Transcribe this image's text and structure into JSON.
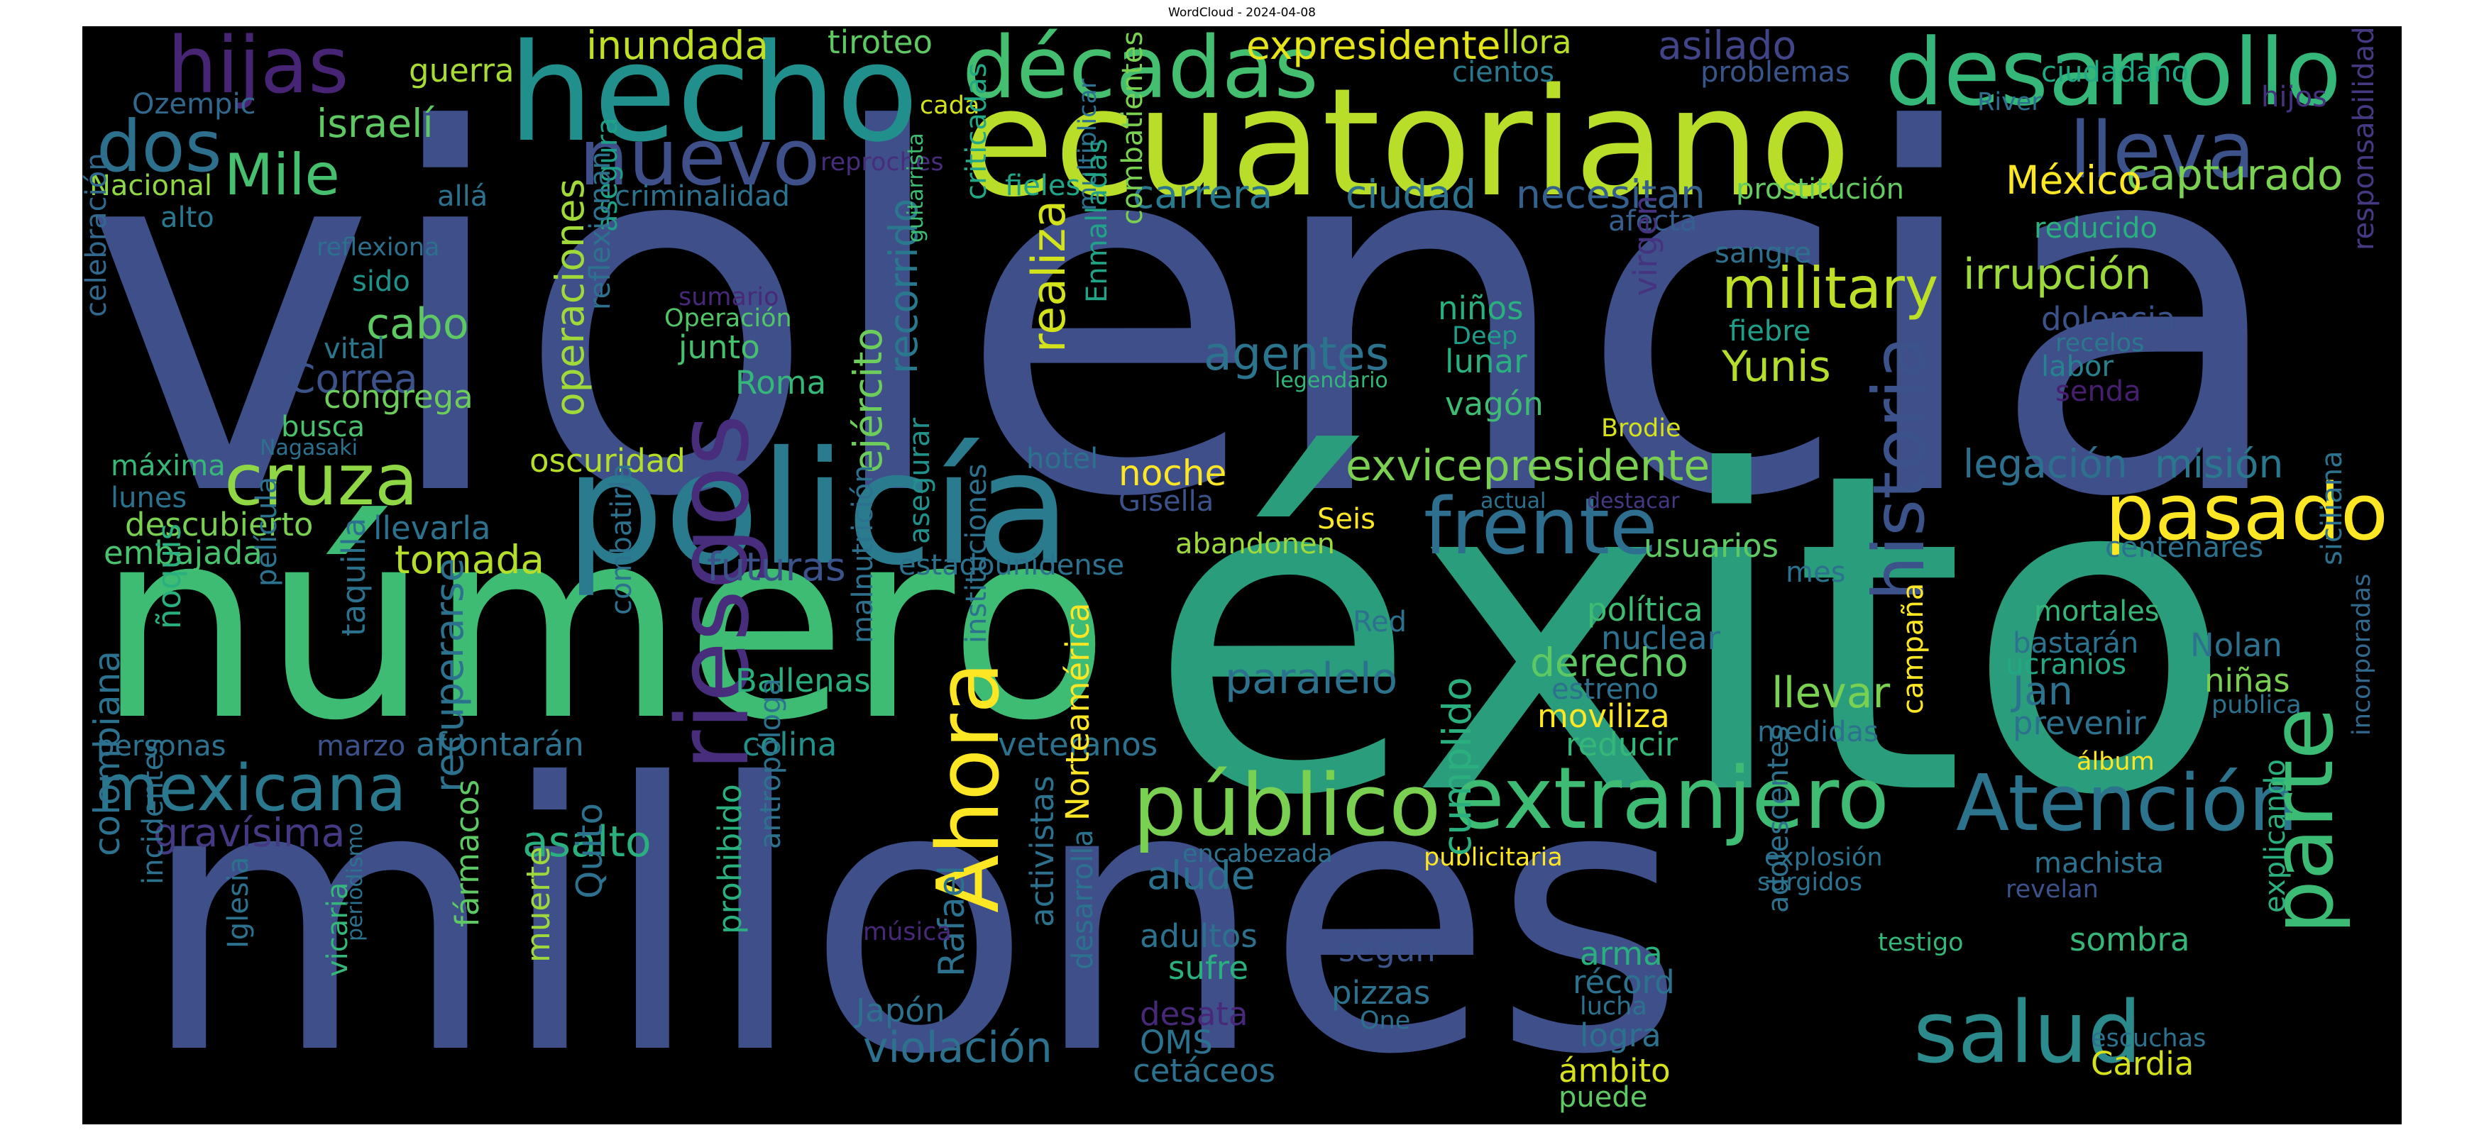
{
  "title": "WordCloud - 2024-04-08",
  "words": [
    {
      "text": "violencia",
      "color": "#3e4f8a"
    },
    {
      "text": "millones",
      "color": "#3e4f8a"
    },
    {
      "text": "éxito",
      "color": "#2a9d7c"
    },
    {
      "text": "número",
      "color": "#3fbc73"
    },
    {
      "text": "ecuatoriano",
      "color": "#b8de29"
    },
    {
      "text": "policía",
      "color": "#2a7b8e"
    },
    {
      "text": "hecho",
      "color": "#21908c"
    },
    {
      "text": "desarrollo",
      "color": "#35b779"
    },
    {
      "text": "décadas",
      "color": "#44bf70"
    },
    {
      "text": "historia",
      "color": "#3b528b"
    },
    {
      "text": "extranjero",
      "color": "#3fbc73"
    },
    {
      "text": "público",
      "color": "#7ad151"
    },
    {
      "text": "Atención",
      "color": "#2c738e"
    },
    {
      "text": "riesgos",
      "color": "#472d7b"
    },
    {
      "text": "salud",
      "color": "#2a8a8c"
    },
    {
      "text": "parte",
      "color": "#3cbb75"
    },
    {
      "text": "pasado",
      "color": "#fde725"
    },
    {
      "text": "frente",
      "color": "#2e6e8e"
    },
    {
      "text": "Ahora",
      "color": "#fde725"
    },
    {
      "text": "lleva",
      "color": "#3b528b"
    },
    {
      "text": "nuevo",
      "color": "#3e4f8a"
    },
    {
      "text": "hijas",
      "color": "#482475"
    },
    {
      "text": "cruza",
      "color": "#8fd744"
    },
    {
      "text": "dos",
      "color": "#2d708e"
    },
    {
      "text": "mexicana",
      "color": "#2a788e"
    },
    {
      "text": "Mile",
      "color": "#46c06f"
    },
    {
      "text": "military",
      "color": "#bddf26"
    },
    {
      "text": "exvicepresidente",
      "color": "#7ad151"
    },
    {
      "text": "operaciones",
      "color": "#a0da39"
    },
    {
      "text": "ejército",
      "color": "#6ccd5a"
    },
    {
      "text": "recorrido",
      "color": "#2a788e"
    },
    {
      "text": "realiza",
      "color": "#d2e21b"
    },
    {
      "text": "agentes",
      "color": "#2c738e"
    },
    {
      "text": "Yunis",
      "color": "#b5de2b"
    },
    {
      "text": "capturado",
      "color": "#7ad151"
    },
    {
      "text": "irrupción",
      "color": "#9bd93c"
    },
    {
      "text": "México",
      "color": "#fde725"
    },
    {
      "text": "necesitan",
      "color": "#34608d"
    },
    {
      "text": "carrera",
      "color": "#2a788e"
    },
    {
      "text": "ciudad",
      "color": "#2c728e"
    },
    {
      "text": "inundada",
      "color": "#c2df23"
    },
    {
      "text": "expresidente",
      "color": "#e5e419"
    },
    {
      "text": "asilado",
      "color": "#414487"
    },
    {
      "text": "guerra",
      "color": "#a8db34"
    },
    {
      "text": "tiroteo",
      "color": "#5ec962"
    },
    {
      "text": "llora",
      "color": "#b8de29"
    },
    {
      "text": "cientos",
      "color": "#2a788e"
    },
    {
      "text": "problemas",
      "color": "#39568c"
    },
    {
      "text": "ciudadano",
      "color": "#22a884"
    },
    {
      "text": "hijos",
      "color": "#46337f"
    },
    {
      "text": "River",
      "color": "#2d708e"
    },
    {
      "text": "Ozempic",
      "color": "#31688e"
    },
    {
      "text": "cada",
      "color": "#d2e21b"
    },
    {
      "text": "israelí",
      "color": "#5ec962"
    },
    {
      "text": "reproches",
      "color": "#472d7b"
    },
    {
      "text": "Nacional",
      "color": "#8fd744"
    },
    {
      "text": "allá",
      "color": "#2c728e"
    },
    {
      "text": "criminalidad",
      "color": "#2c728e"
    },
    {
      "text": "fieles",
      "color": "#20a386"
    },
    {
      "text": "prostitución",
      "color": "#63cb5f"
    },
    {
      "text": "alto",
      "color": "#2a788e"
    },
    {
      "text": "asegura",
      "color": "#1fa088"
    },
    {
      "text": "afecta",
      "color": "#35608d"
    },
    {
      "text": "reducido",
      "color": "#2ab07f"
    },
    {
      "text": "reflexiona",
      "color": "#2d708e"
    },
    {
      "text": "criticadas",
      "color": "#22a884"
    },
    {
      "text": "guitarrista",
      "color": "#3fbc73"
    },
    {
      "text": "multiplicar",
      "color": "#2c728e"
    },
    {
      "text": "Enmalladas",
      "color": "#20a386"
    },
    {
      "text": "combatientes",
      "color": "#7ad151"
    },
    {
      "text": "sangre",
      "color": "#2d708e"
    },
    {
      "text": "sido",
      "color": "#21918c"
    },
    {
      "text": "niños",
      "color": "#2ab07f"
    },
    {
      "text": "virgen",
      "color": "#46337f"
    },
    {
      "text": "dolencia",
      "color": "#3b528b"
    },
    {
      "text": "responsabilidad",
      "color": "#443a83"
    },
    {
      "text": "sumario",
      "color": "#482878"
    },
    {
      "text": "Operación",
      "color": "#52c569"
    },
    {
      "text": "cabo",
      "color": "#5ec962"
    },
    {
      "text": "fiebre",
      "color": "#1f9e89"
    },
    {
      "text": "recelos",
      "color": "#2a788e"
    },
    {
      "text": "reflexionan",
      "color": "#2c728e"
    },
    {
      "text": "junto",
      "color": "#46c06f"
    },
    {
      "text": "Deep",
      "color": "#1f9e89"
    },
    {
      "text": "labor",
      "color": "#26828e"
    },
    {
      "text": "vital",
      "color": "#2a788e"
    },
    {
      "text": "lunar",
      "color": "#2ab07f"
    },
    {
      "text": "legendario",
      "color": "#32b67a"
    },
    {
      "text": "senda",
      "color": "#481f70"
    },
    {
      "text": "Correa",
      "color": "#3b528b"
    },
    {
      "text": "Roma",
      "color": "#35b779"
    },
    {
      "text": "congrega",
      "color": "#6ccd5a"
    },
    {
      "text": "vagón",
      "color": "#3fbc73"
    },
    {
      "text": "celebración",
      "color": "#31688e"
    },
    {
      "text": "busca",
      "color": "#4ac16d"
    },
    {
      "text": "Nagasaki",
      "color": "#2c728e"
    },
    {
      "text": "Brodie",
      "color": "#d5e21a"
    },
    {
      "text": "máxima",
      "color": "#37b878"
    },
    {
      "text": "oscuridad",
      "color": "#b5de2b"
    },
    {
      "text": "hotel",
      "color": "#2c728e"
    },
    {
      "text": "noche",
      "color": "#fde725"
    },
    {
      "text": "legación",
      "color": "#2d708e"
    },
    {
      "text": "misión",
      "color": "#2a788e"
    },
    {
      "text": "lunes",
      "color": "#2c728e"
    },
    {
      "text": "Gisella",
      "color": "#3b528b"
    },
    {
      "text": "actual",
      "color": "#2c728e"
    },
    {
      "text": "destacar",
      "color": "#443983"
    },
    {
      "text": "descubierto",
      "color": "#7ad151"
    },
    {
      "text": "llevarla",
      "color": "#2c728e"
    },
    {
      "text": "Seis",
      "color": "#fde725"
    },
    {
      "text": "embajada",
      "color": "#4ac16d"
    },
    {
      "text": "tomada",
      "color": "#b5de2b"
    },
    {
      "text": "futuras",
      "color": "#3b528b"
    },
    {
      "text": "estadounidense",
      "color": "#2c728e"
    },
    {
      "text": "abandonen",
      "color": "#9dd93b"
    },
    {
      "text": "usuarios",
      "color": "#5ec962"
    },
    {
      "text": "centenares",
      "color": "#2c728e"
    },
    {
      "text": "mes",
      "color": "#2c728e"
    },
    {
      "text": "película",
      "color": "#2c728e"
    },
    {
      "text": "asegurar",
      "color": "#21918c"
    },
    {
      "text": "combatirla",
      "color": "#2c728e"
    },
    {
      "text": "política",
      "color": "#3fbc73"
    },
    {
      "text": "nuclear",
      "color": "#2c728e"
    },
    {
      "text": "Red",
      "color": "#2c728e"
    },
    {
      "text": "mortales",
      "color": "#35b779"
    },
    {
      "text": "siciliana",
      "color": "#2c728e"
    },
    {
      "text": "bastarán",
      "color": "#2c728e"
    },
    {
      "text": "Nolan",
      "color": "#2c728e"
    },
    {
      "text": "ñoquis",
      "color": "#2ab07f"
    },
    {
      "text": "taquilla",
      "color": "#2c728e"
    },
    {
      "text": "derecho",
      "color": "#5ec962"
    },
    {
      "text": "paralelo",
      "color": "#2c728e"
    },
    {
      "text": "ucranios",
      "color": "#22a884"
    },
    {
      "text": "niñas",
      "color": "#7ad151"
    },
    {
      "text": "publica",
      "color": "#2c728e"
    },
    {
      "text": "Ballenas",
      "color": "#2ab07f"
    },
    {
      "text": "malnutrición",
      "color": "#2c728e"
    },
    {
      "text": "instituciones",
      "color": "#2c728e"
    },
    {
      "text": "estreno",
      "color": "#2c728e"
    },
    {
      "text": "llevar",
      "color": "#7ad151"
    },
    {
      "text": "Jan",
      "color": "#2c728e"
    },
    {
      "text": "moviliza",
      "color": "#fde725"
    },
    {
      "text": "prevenir",
      "color": "#2c728e"
    },
    {
      "text": "personas",
      "color": "#2c728e"
    },
    {
      "text": "marzo",
      "color": "#3b528b"
    },
    {
      "text": "afrontarán",
      "color": "#2c728e"
    },
    {
      "text": "colina",
      "color": "#21918c"
    },
    {
      "text": "veteranos",
      "color": "#2c728e"
    },
    {
      "text": "reducir",
      "color": "#35b779"
    },
    {
      "text": "medidas",
      "color": "#2c728e"
    },
    {
      "text": "campaña",
      "color": "#fde725"
    },
    {
      "text": "álbum",
      "color": "#fde725"
    },
    {
      "text": "incorporadas",
      "color": "#31688e"
    },
    {
      "text": "gravísima",
      "color": "#443983"
    },
    {
      "text": "recuperarse",
      "color": "#2c728e"
    },
    {
      "text": "asalto",
      "color": "#2ab07f"
    },
    {
      "text": "Norteamérica",
      "color": "#fde725"
    },
    {
      "text": "alude",
      "color": "#2c728e"
    },
    {
      "text": "encabezada",
      "color": "#2c728e"
    },
    {
      "text": "publicitaria",
      "color": "#fde725"
    },
    {
      "text": "explosión",
      "color": "#2c728e"
    },
    {
      "text": "surgidos",
      "color": "#2c728e"
    },
    {
      "text": "machista",
      "color": "#2c728e"
    },
    {
      "text": "revelan",
      "color": "#3b528b"
    },
    {
      "text": "colombiana",
      "color": "#2c728e"
    },
    {
      "text": "Quito",
      "color": "#2c728e"
    },
    {
      "text": "activistas",
      "color": "#2c728e"
    },
    {
      "text": "antropóloga",
      "color": "#2c728e"
    },
    {
      "text": "Rafael",
      "color": "#2c728e"
    },
    {
      "text": "desarrolla",
      "color": "#2c728e"
    },
    {
      "text": "prohibido",
      "color": "#2ab07f"
    },
    {
      "text": "cumplido",
      "color": "#2ab07f"
    },
    {
      "text": "adolescentes",
      "color": "#2c728e"
    },
    {
      "text": "incidentes",
      "color": "#2c728e"
    },
    {
      "text": "música",
      "color": "#482878"
    },
    {
      "text": "adultos",
      "color": "#2c728e"
    },
    {
      "text": "testigo",
      "color": "#35b779"
    },
    {
      "text": "explicando",
      "color": "#2ab07f"
    },
    {
      "text": "sombra",
      "color": "#35b779"
    },
    {
      "text": "Iglesia",
      "color": "#2c728e"
    },
    {
      "text": "vicaria",
      "color": "#35b779"
    },
    {
      "text": "periodismo",
      "color": "#2c728e"
    },
    {
      "text": "fármacos",
      "color": "#5ec962"
    },
    {
      "text": "muerte",
      "color": "#9dd93b"
    },
    {
      "text": "sufre",
      "color": "#2ab07f"
    },
    {
      "text": "según",
      "color": "#3b528b"
    },
    {
      "text": "arma",
      "color": "#2ab07f"
    },
    {
      "text": "récord",
      "color": "#2c728e"
    },
    {
      "text": "lucha",
      "color": "#2c728e"
    },
    {
      "text": "pizzas",
      "color": "#2c728e"
    },
    {
      "text": "Japón",
      "color": "#2c728e"
    },
    {
      "text": "desata",
      "color": "#482878"
    },
    {
      "text": "One",
      "color": "#2c728e"
    },
    {
      "text": "violación",
      "color": "#2c728e"
    },
    {
      "text": "OMS",
      "color": "#2c728e"
    },
    {
      "text": "logra",
      "color": "#2c728e"
    },
    {
      "text": "escuchas",
      "color": "#2c728e"
    },
    {
      "text": "Cardia",
      "color": "#d5e21a"
    },
    {
      "text": "cetáceos",
      "color": "#2c728e"
    },
    {
      "text": "ámbito",
      "color": "#d5e21a"
    },
    {
      "text": "puede",
      "color": "#5ec962"
    }
  ]
}
